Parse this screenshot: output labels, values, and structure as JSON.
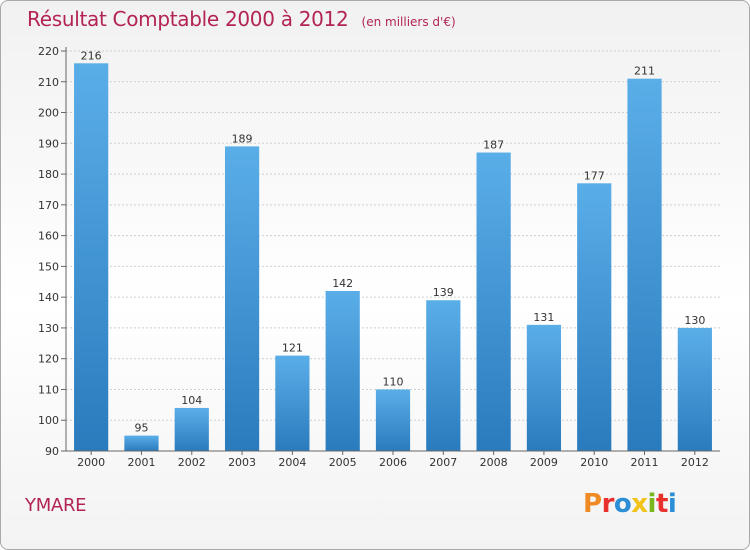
{
  "header": {
    "title": "Résultat Comptable 2000 à 2012",
    "subtitle": "(en milliers d'€)"
  },
  "footer": {
    "commune": "YMARE",
    "logo_text": "Proxiti"
  },
  "colors": {
    "title": "#b32455",
    "bar_top": "#5aaee8",
    "bar_bottom": "#2a7bbd",
    "logo_letters": [
      "#f08a24",
      "#e8312f",
      "#2c8fd6",
      "#f1c31b",
      "#7ab51d",
      "#e8312f",
      "#2c8fd6"
    ]
  },
  "chart_data": {
    "type": "bar",
    "categories": [
      "2000",
      "2001",
      "2002",
      "2003",
      "2004",
      "2005",
      "2006",
      "2007",
      "2008",
      "2009",
      "2010",
      "2011",
      "2012"
    ],
    "values": [
      216,
      95,
      104,
      189,
      121,
      142,
      110,
      139,
      187,
      131,
      177,
      211,
      130
    ],
    "title": "Résultat Comptable 2000 à 2012",
    "subtitle": "(en milliers d'€)",
    "xlabel": "",
    "ylabel": "",
    "ylim": [
      90,
      220
    ],
    "yticks": [
      90,
      100,
      110,
      120,
      130,
      140,
      150,
      160,
      170,
      180,
      190,
      200,
      210,
      220
    ],
    "grid": true,
    "data_labels": true
  }
}
